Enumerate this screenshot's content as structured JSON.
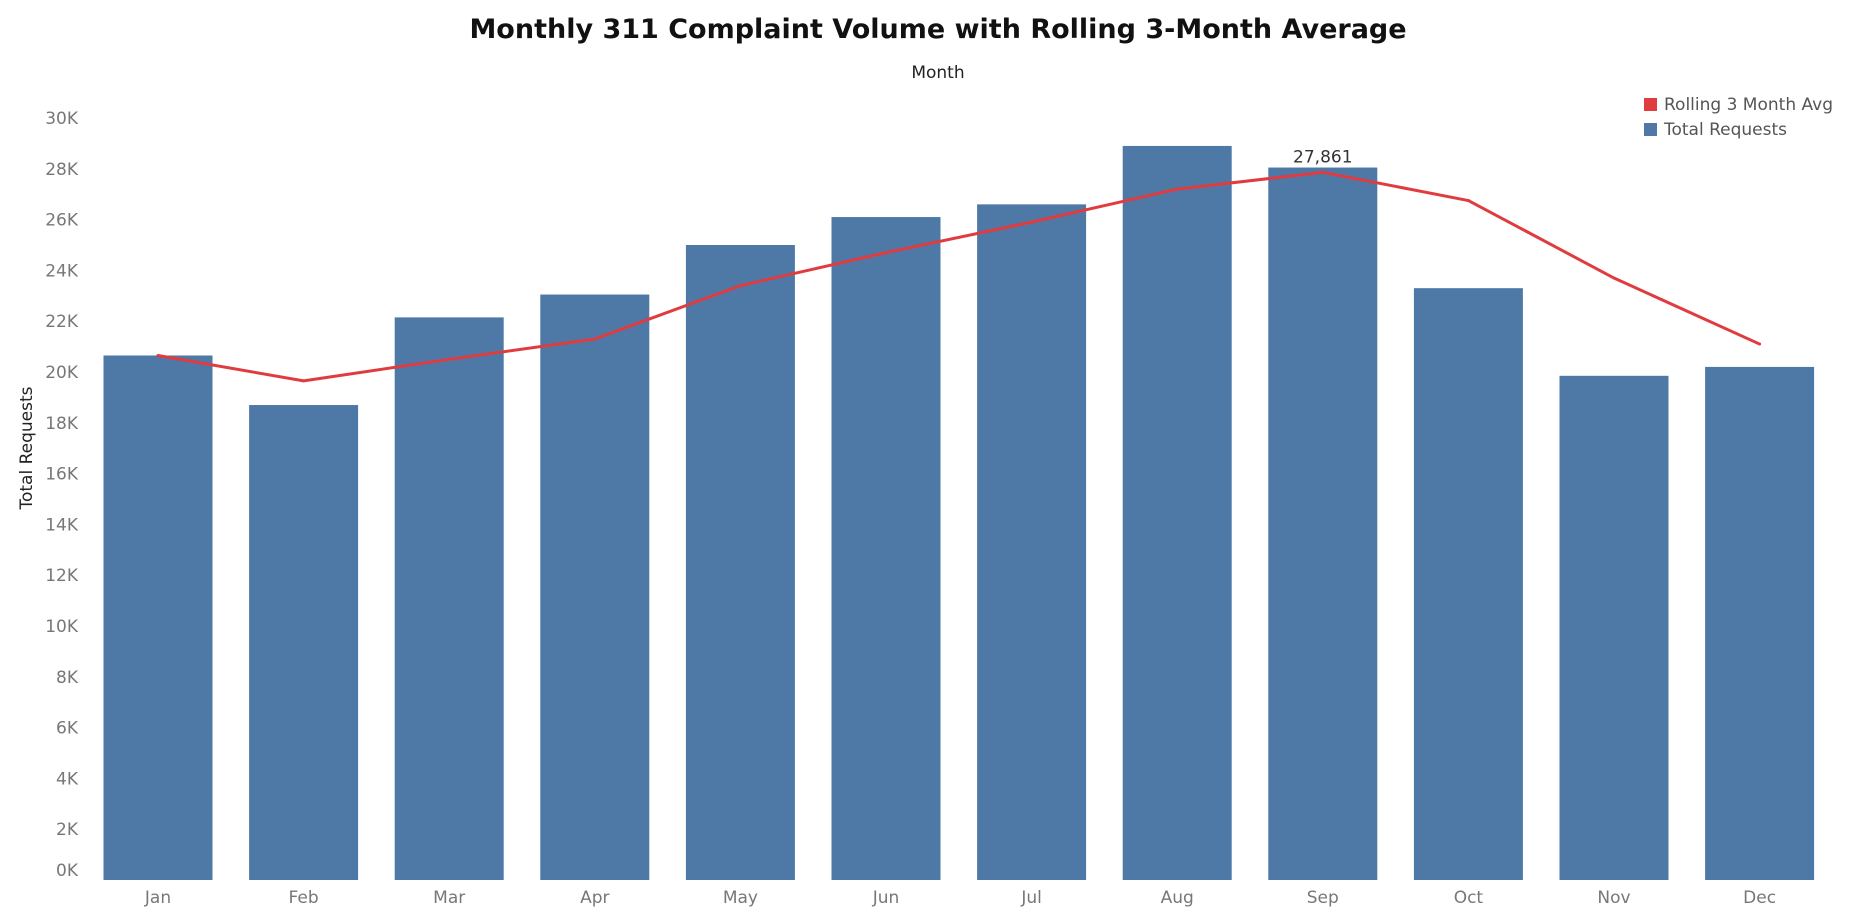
{
  "chart_data": {
    "type": "bar",
    "title": "Monthly 311 Complaint Volume with Rolling 3-Month Average",
    "xlabel": "Month",
    "ylabel": "Total Requests",
    "categories": [
      "Jan",
      "Feb",
      "Mar",
      "Apr",
      "May",
      "Jun",
      "Jul",
      "Aug",
      "Sep",
      "Oct",
      "Nov",
      "Dec"
    ],
    "ylim": [
      0,
      30000
    ],
    "yticks": [
      0,
      2000,
      4000,
      6000,
      8000,
      10000,
      12000,
      14000,
      16000,
      18000,
      20000,
      22000,
      24000,
      26000,
      28000,
      30000
    ],
    "ytick_labels": [
      "0K",
      "2K",
      "4K",
      "6K",
      "8K",
      "10K",
      "12K",
      "14K",
      "16K",
      "18K",
      "20K",
      "22K",
      "24K",
      "26K",
      "28K",
      "30K"
    ],
    "grid": false,
    "legend_position": "top-right",
    "series": [
      {
        "name": "Total Requests",
        "type": "bar",
        "color": "#4e79a7",
        "values": [
          20650,
          18700,
          22150,
          23050,
          25000,
          26100,
          26600,
          28900,
          28050,
          23300,
          19850,
          20200
        ]
      },
      {
        "name": "Rolling 3 Month Avg",
        "type": "line",
        "color": "#e03c40",
        "values": [
          20650,
          19650,
          20500,
          21300,
          23400,
          24700,
          25900,
          27200,
          27861,
          26750,
          23700,
          21100
        ]
      }
    ],
    "annotations": [
      {
        "category": "Sep",
        "series": "Rolling 3 Month Avg",
        "text": "27,861"
      }
    ]
  }
}
